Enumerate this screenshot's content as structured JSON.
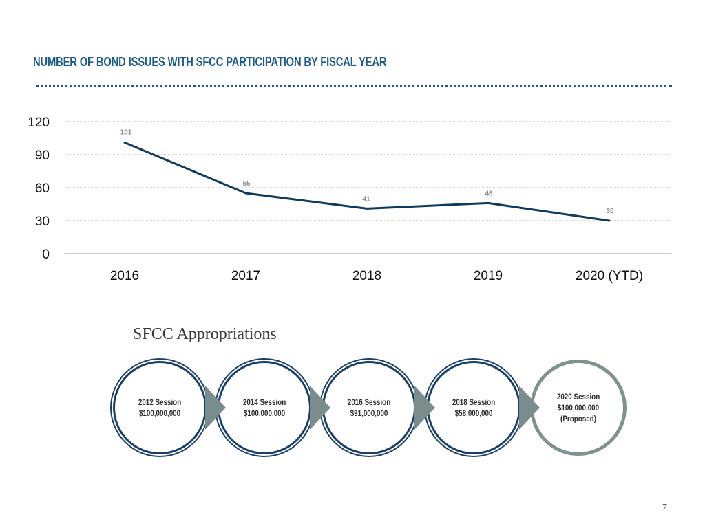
{
  "colors": {
    "accent": "#0e3a5e",
    "title": "#1d5a87",
    "grid": "#b5b5b5",
    "circle_border": "#1b3f66",
    "circle_border_last": "#7f9190",
    "arrow": "#7a8c8b"
  },
  "header": {
    "title": "NUMBER OF BOND ISSUES WITH SFCC PARTICIPATION BY FISCAL YEAR"
  },
  "chart_data": {
    "type": "line",
    "categories": [
      "2016",
      "2017",
      "2018",
      "2019",
      "2020 (YTD)"
    ],
    "values": [
      101,
      55,
      41,
      46,
      30
    ],
    "data_labels": [
      "101",
      "55",
      "41",
      "46",
      "30"
    ],
    "y_ticks": [
      "120",
      "90",
      "60",
      "30",
      "0"
    ],
    "ylim": [
      0,
      120
    ],
    "grid": true,
    "title": "NUMBER OF BOND ISSUES WITH SFCC PARTICIPATION BY FISCAL YEAR",
    "xlabel": "",
    "ylabel": ""
  },
  "appropriations": {
    "title": "SFCC Appropriations",
    "items": [
      {
        "session": "2012 Session",
        "amount": "$100,000,000",
        "note": ""
      },
      {
        "session": "2014 Session",
        "amount": "$100,000,000",
        "note": ""
      },
      {
        "session": "2016 Session",
        "amount": "$91,000,000",
        "note": ""
      },
      {
        "session": "2018 Session",
        "amount": "$58,000,000",
        "note": ""
      },
      {
        "session": "2020 Session",
        "amount": "$100,000,000",
        "note": "(Proposed)"
      }
    ]
  },
  "footer": {
    "page_number": "7"
  }
}
